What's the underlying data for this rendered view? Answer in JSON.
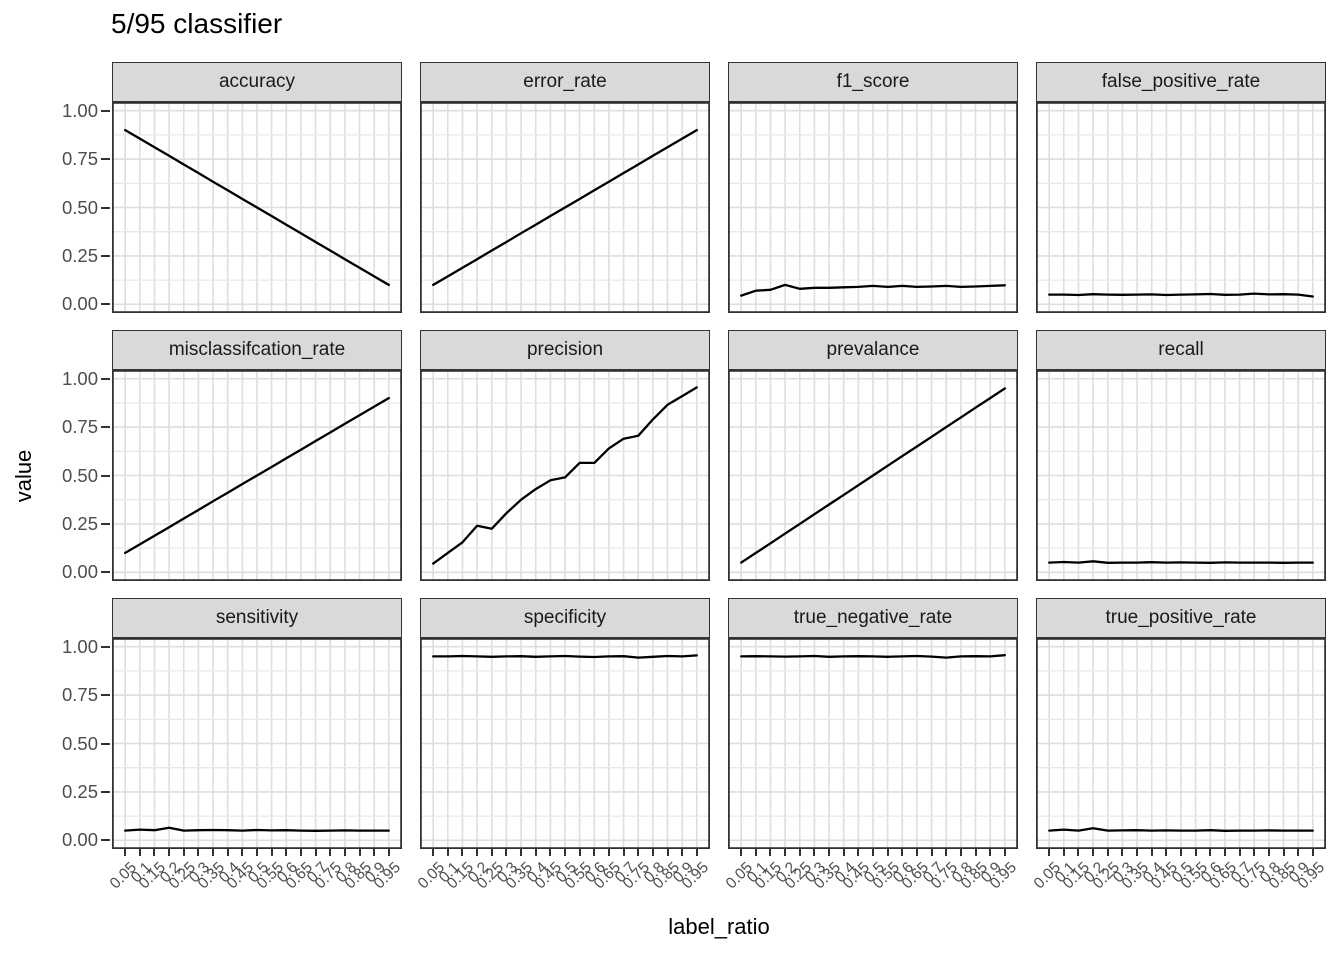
{
  "title": "5/95 classifier",
  "axes": {
    "x_label": "label_ratio",
    "y_label": "value",
    "y_tick_labels": [
      "1.00",
      "0.75",
      "0.50",
      "0.25",
      "0.00"
    ],
    "x_tick_labels": [
      "0.05",
      "0.1",
      "0.15",
      "0.2",
      "0.25",
      "0.3",
      "0.35",
      "0.4",
      "0.45",
      "0.5",
      "0.55",
      "0.6",
      "0.65",
      "0.7",
      "0.75",
      "0.8",
      "0.85",
      "0.9",
      "0.95"
    ]
  },
  "colors": {
    "line": "#000000",
    "strip_background": "#d9d9d9",
    "strip_border": "#333333",
    "panel_background": "#ffffff",
    "panel_border": "#333333",
    "grid_major": "#dedede",
    "grid_minor": "#e9e9e9",
    "axis_text": "#4d4d4d",
    "tick_mark": "#333333",
    "title_text": "#000000"
  },
  "chart_data": {
    "type": "line",
    "title": "5/95 classifier",
    "xlabel": "label_ratio",
    "ylabel": "value",
    "grid": true,
    "legend_position": "none",
    "facet_layout": {
      "rows": 3,
      "cols": 4
    },
    "xlim": [
      0.005,
      0.995
    ],
    "ylim": [
      0,
      1
    ],
    "y_major_ticks": [
      0,
      0.25,
      0.5,
      0.75,
      1.0
    ],
    "y_minor_step": 0.125,
    "x": [
      0.05,
      0.1,
      0.15,
      0.2,
      0.25,
      0.3,
      0.35,
      0.4,
      0.45,
      0.5,
      0.55,
      0.6,
      0.65,
      0.7,
      0.75,
      0.8,
      0.85,
      0.9,
      0.95
    ],
    "facets": [
      {
        "label": "accuracy",
        "values": [
          0.9,
          0.856,
          0.811,
          0.767,
          0.722,
          0.678,
          0.633,
          0.589,
          0.544,
          0.5,
          0.456,
          0.411,
          0.367,
          0.322,
          0.278,
          0.233,
          0.189,
          0.144,
          0.1
        ]
      },
      {
        "label": "error_rate",
        "values": [
          0.1,
          0.144,
          0.189,
          0.233,
          0.278,
          0.322,
          0.367,
          0.411,
          0.456,
          0.5,
          0.544,
          0.589,
          0.633,
          0.678,
          0.722,
          0.767,
          0.811,
          0.856,
          0.9
        ]
      },
      {
        "label": "f1_score",
        "values": [
          0.045,
          0.07,
          0.075,
          0.1,
          0.08,
          0.085,
          0.085,
          0.088,
          0.09,
          0.095,
          0.09,
          0.095,
          0.09,
          0.092,
          0.095,
          0.09,
          0.092,
          0.095,
          0.098
        ]
      },
      {
        "label": "false_positive_rate",
        "values": [
          0.05,
          0.05,
          0.048,
          0.052,
          0.05,
          0.049,
          0.05,
          0.051,
          0.048,
          0.05,
          0.051,
          0.053,
          0.049,
          0.05,
          0.055,
          0.051,
          0.052,
          0.05,
          0.04
        ]
      },
      {
        "label": "misclassifcation_rate",
        "values": [
          0.1,
          0.144,
          0.189,
          0.233,
          0.278,
          0.322,
          0.367,
          0.411,
          0.456,
          0.5,
          0.544,
          0.589,
          0.633,
          0.678,
          0.722,
          0.767,
          0.811,
          0.856,
          0.9
        ]
      },
      {
        "label": "precision",
        "values": [
          0.045,
          0.1,
          0.155,
          0.24,
          0.225,
          0.305,
          0.375,
          0.43,
          0.475,
          0.49,
          0.565,
          0.565,
          0.64,
          0.69,
          0.705,
          0.79,
          0.865,
          0.91,
          0.955
        ]
      },
      {
        "label": "prevalance",
        "values": [
          0.05,
          0.1,
          0.15,
          0.2,
          0.25,
          0.3,
          0.35,
          0.4,
          0.45,
          0.5,
          0.55,
          0.6,
          0.65,
          0.7,
          0.75,
          0.8,
          0.85,
          0.9,
          0.95
        ]
      },
      {
        "label": "recall",
        "values": [
          0.05,
          0.053,
          0.05,
          0.057,
          0.049,
          0.05,
          0.05,
          0.052,
          0.05,
          0.051,
          0.05,
          0.049,
          0.051,
          0.05,
          0.05,
          0.05,
          0.049,
          0.05,
          0.05
        ]
      },
      {
        "label": "sensitivity",
        "values": [
          0.05,
          0.055,
          0.052,
          0.065,
          0.05,
          0.052,
          0.053,
          0.052,
          0.05,
          0.053,
          0.051,
          0.052,
          0.05,
          0.049,
          0.05,
          0.051,
          0.05,
          0.05,
          0.05
        ]
      },
      {
        "label": "specificity",
        "values": [
          0.95,
          0.95,
          0.952,
          0.95,
          0.948,
          0.95,
          0.951,
          0.948,
          0.95,
          0.952,
          0.949,
          0.947,
          0.95,
          0.951,
          0.944,
          0.948,
          0.952,
          0.95,
          0.955
        ]
      },
      {
        "label": "true_negative_rate",
        "values": [
          0.95,
          0.951,
          0.95,
          0.949,
          0.95,
          0.952,
          0.948,
          0.95,
          0.951,
          0.95,
          0.948,
          0.95,
          0.952,
          0.949,
          0.944,
          0.95,
          0.951,
          0.95,
          0.956
        ]
      },
      {
        "label": "true_positive_rate",
        "values": [
          0.05,
          0.055,
          0.05,
          0.062,
          0.05,
          0.051,
          0.052,
          0.05,
          0.051,
          0.05,
          0.05,
          0.052,
          0.049,
          0.05,
          0.05,
          0.051,
          0.05,
          0.05,
          0.05
        ]
      }
    ]
  }
}
